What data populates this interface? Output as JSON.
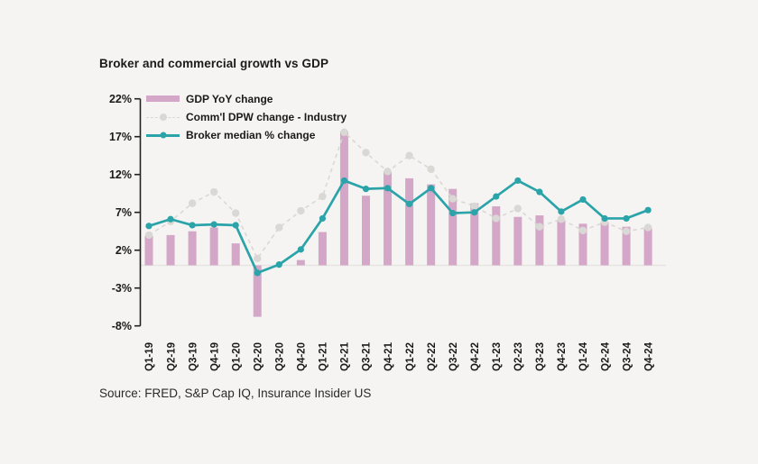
{
  "chart_data": {
    "type": "bar",
    "subtype": "combo-bar-line",
    "title": "Broker and commercial growth vs GDP",
    "source": "Source: FRED, S&P Cap IQ, Insurance Insider US",
    "categories": [
      "Q1-19",
      "Q2-19",
      "Q3-19",
      "Q4-19",
      "Q1-20",
      "Q2-20",
      "Q3-20",
      "Q4-20",
      "Q1-21",
      "Q2-21",
      "Q3-21",
      "Q4-21",
      "Q1-22",
      "Q2-22",
      "Q3-22",
      "Q4-22",
      "Q1-23",
      "Q2-23",
      "Q3-23",
      "Q4-23",
      "Q1-24",
      "Q2-24",
      "Q3-24",
      "Q4-24"
    ],
    "series": [
      {
        "name": "GDP YoY change",
        "type": "bar",
        "color": "#d4a6c8",
        "values": [
          3.9,
          4.0,
          4.5,
          5.0,
          2.9,
          -6.8,
          0.0,
          0.7,
          4.4,
          17.7,
          9.2,
          12.4,
          11.5,
          10.7,
          10.1,
          8.2,
          7.8,
          6.4,
          6.6,
          6.0,
          5.5,
          5.7,
          5.1,
          4.9
        ]
      },
      {
        "name": "Comm'l DPW change - Industry",
        "type": "line-dashed",
        "color": "#d9d8d5",
        "values": [
          4.0,
          5.8,
          8.2,
          9.7,
          6.9,
          0.9,
          5.0,
          7.2,
          9.1,
          17.6,
          14.9,
          12.4,
          14.5,
          12.7,
          8.8,
          7.8,
          6.2,
          7.5,
          5.1,
          6.1,
          4.6,
          5.7,
          4.5,
          5.0
        ]
      },
      {
        "name": "Broker median % change",
        "type": "line",
        "color": "#2aa3a9",
        "values": [
          5.2,
          6.1,
          5.3,
          5.4,
          5.3,
          -1.0,
          0.1,
          2.1,
          6.2,
          11.2,
          10.1,
          10.2,
          8.1,
          10.2,
          6.9,
          7.0,
          9.1,
          11.2,
          9.7,
          7.1,
          8.7,
          6.2,
          6.2,
          7.3
        ]
      }
    ],
    "y_axis": {
      "tick_labels": [
        "22%",
        "17%",
        "12%",
        "7%",
        "2%",
        "-3%",
        "-8%"
      ],
      "tick_values": [
        22,
        17,
        12,
        7,
        2,
        -3,
        -8
      ],
      "min": -8,
      "max": 22
    },
    "layout": {
      "legend_position": "top-left-inside",
      "grid": "zero-baseline-only",
      "x_labels_rotated": true
    },
    "colors": {
      "background": "#f5f4f2",
      "axis": "#222222",
      "text": "#1a1a1a",
      "zero_gridline": "#e6e5e2",
      "bar": "#d4a6c8",
      "industry_line": "#d9d8d5",
      "broker_line": "#2aa3a9"
    }
  }
}
